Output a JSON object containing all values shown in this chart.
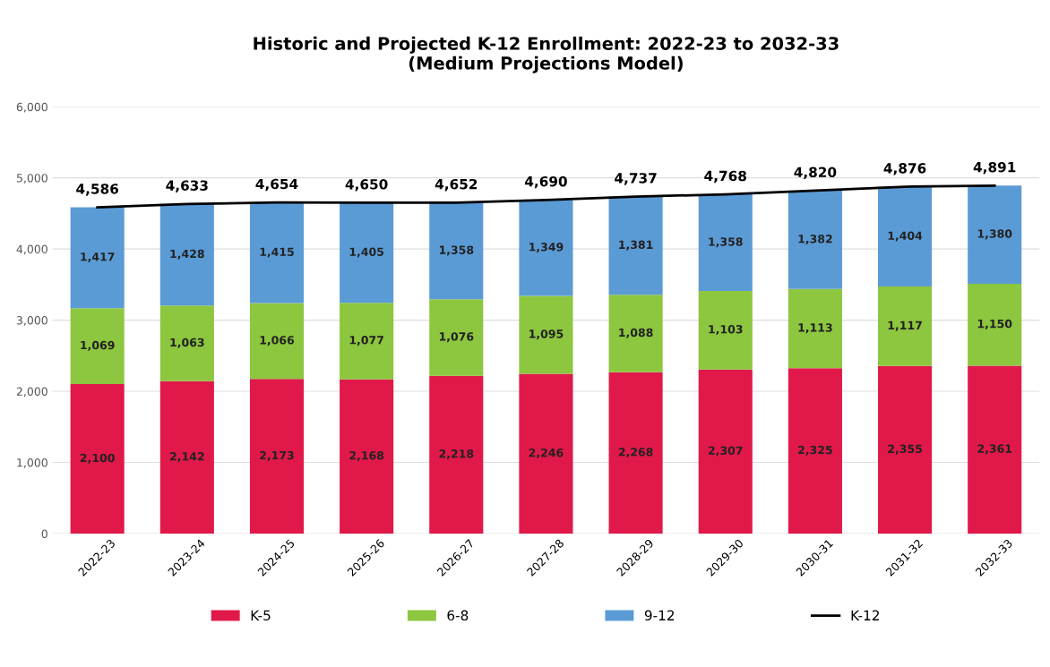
{
  "chart_data": {
    "type": "bar",
    "title": "Historic and Projected K-12 Enrollment: 2022-23 to 2032-33\n(Medium Projections Model)",
    "categories": [
      "2022-23",
      "2023-24",
      "2024-25",
      "2025-26",
      "2026-27",
      "2027-28",
      "2028-29",
      "2029-30",
      "2030-31",
      "2031-32",
      "2032-33"
    ],
    "stacked": true,
    "series": [
      {
        "name": "K-5",
        "color": "#e0194a",
        "values": [
          2100,
          2142,
          2173,
          2168,
          2218,
          2246,
          2268,
          2307,
          2325,
          2355,
          2361
        ],
        "value_labels": [
          "2,100",
          "2,142",
          "2,173",
          "2,168",
          "2,218",
          "2,246",
          "2,268",
          "2,307",
          "2,325",
          "2,355",
          "2,361"
        ]
      },
      {
        "name": "6-8",
        "color": "#8dc63f",
        "values": [
          1069,
          1063,
          1066,
          1077,
          1076,
          1095,
          1088,
          1103,
          1113,
          1117,
          1150
        ],
        "value_labels": [
          "1,069",
          "1,063",
          "1,066",
          "1,077",
          "1,076",
          "1,095",
          "1,088",
          "1,103",
          "1,113",
          "1,117",
          "1,150"
        ]
      },
      {
        "name": "9-12",
        "color": "#5b9bd5",
        "values": [
          1417,
          1428,
          1415,
          1405,
          1358,
          1349,
          1381,
          1358,
          1382,
          1404,
          1380
        ],
        "value_labels": [
          "1,417",
          "1,428",
          "1,415",
          "1,405",
          "1,358",
          "1,349",
          "1,381",
          "1,358",
          "1,382",
          "1,404",
          "1,380"
        ]
      },
      {
        "name": "K-12",
        "type": "line",
        "color": "#000000",
        "values": [
          4586,
          4633,
          4654,
          4650,
          4652,
          4690,
          4737,
          4768,
          4820,
          4876,
          4891
        ],
        "value_labels": [
          "4,586",
          "4,633",
          "4,654",
          "4,650",
          "4,652",
          "4,690",
          "4,737",
          "4,768",
          "4,820",
          "4,876",
          "4,891"
        ]
      }
    ],
    "ylim": [
      0,
      6000
    ],
    "yticks": [
      {
        "value": 0,
        "label": "0"
      },
      {
        "value": 1000,
        "label": "1,000"
      },
      {
        "value": 2000,
        "label": "2,000"
      },
      {
        "value": 3000,
        "label": "3,000"
      },
      {
        "value": 4000,
        "label": "4,000"
      },
      {
        "value": 5000,
        "label": "5,000"
      },
      {
        "value": 6000,
        "label": "6,000"
      }
    ],
    "grid": "y",
    "legend": "bottom"
  }
}
